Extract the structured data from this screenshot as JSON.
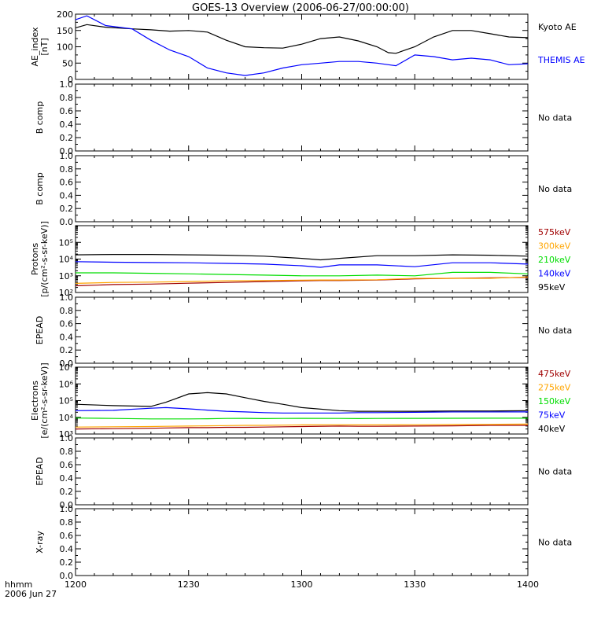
{
  "title": "GOES-13 Overview (2006-06-27/00:00:00)",
  "time_axis": {
    "ticks": [
      "1200",
      "1230",
      "1300",
      "1330",
      "1400"
    ],
    "unit_label": "hhmm",
    "date_label": "2006 Jun 27"
  },
  "colors": {
    "black": "#000000",
    "blue": "#0000ff",
    "green": "#00dd00",
    "orange": "#ffa500",
    "red": "#a00000",
    "frame": "#000000"
  },
  "chart_data": [
    {
      "type": "line",
      "panel": "ae",
      "ylabel": [
        "AE_index",
        "[nT]"
      ],
      "ylim": [
        0,
        200
      ],
      "yticks": [
        "0",
        "50",
        "100",
        "150",
        "200"
      ],
      "x": [
        0,
        3,
        8,
        15,
        20,
        25,
        30,
        35,
        40,
        45,
        50,
        55,
        60,
        65,
        70,
        75,
        80,
        83,
        85,
        90,
        95,
        100,
        105,
        110,
        115,
        120
      ],
      "series": [
        {
          "name": "Kyoto AE",
          "color": "black",
          "values": [
            158,
            168,
            160,
            155,
            152,
            148,
            150,
            145,
            120,
            100,
            97,
            96,
            108,
            125,
            130,
            118,
            100,
            82,
            80,
            100,
            130,
            150,
            150,
            140,
            130,
            128
          ]
        },
        {
          "name": "THEMIS AE",
          "color": "blue",
          "values": [
            183,
            195,
            165,
            155,
            120,
            90,
            70,
            35,
            20,
            12,
            20,
            35,
            45,
            50,
            55,
            55,
            50,
            45,
            42,
            75,
            70,
            60,
            65,
            60,
            45,
            48
          ]
        }
      ]
    },
    {
      "type": "line",
      "panel": "b1",
      "ylabel": [
        "B comp"
      ],
      "ylim": [
        0,
        1
      ],
      "yticks": [
        "0.0",
        "0.2",
        "0.4",
        "0.6",
        "0.8",
        "1.0"
      ],
      "status": "No data"
    },
    {
      "type": "line",
      "panel": "b2",
      "ylabel": [
        "B comp"
      ],
      "ylim": [
        0,
        1
      ],
      "yticks": [
        "0.0",
        "0.2",
        "0.4",
        "0.6",
        "0.8",
        "1.0"
      ],
      "status": "No data"
    },
    {
      "type": "line",
      "panel": "protons",
      "scale": "log",
      "ylabel": [
        "Protons",
        "[p/(cm²-s-sr-keV)]"
      ],
      "ylim": [
        100,
        1000000
      ],
      "yticks": [
        "10²",
        "10³",
        "10⁴",
        "10⁵"
      ],
      "x": [
        0,
        10,
        20,
        30,
        40,
        50,
        60,
        65,
        70,
        80,
        90,
        100,
        110,
        120
      ],
      "series": [
        {
          "name": "575keV",
          "color": "red",
          "values": [
            250,
            300,
            320,
            360,
            400,
            450,
            500,
            520,
            520,
            560,
            650,
            700,
            750,
            800
          ]
        },
        {
          "name": "300keV",
          "color": "orange",
          "values": [
            350,
            400,
            420,
            450,
            500,
            520,
            550,
            560,
            560,
            580,
            700,
            700,
            700,
            850
          ]
        },
        {
          "name": "210keV",
          "color": "green",
          "values": [
            1500,
            1500,
            1400,
            1300,
            1200,
            1100,
            1000,
            1000,
            1000,
            1100,
            1000,
            1600,
            1600,
            1300
          ]
        },
        {
          "name": "140keV",
          "color": "blue",
          "values": [
            7000,
            6500,
            6200,
            6000,
            5500,
            5000,
            4000,
            3200,
            4500,
            4500,
            3500,
            6000,
            6000,
            5000
          ]
        },
        {
          "name": "95keV",
          "color": "black",
          "values": [
            18000,
            19000,
            19000,
            18000,
            17000,
            15000,
            11000,
            9000,
            11000,
            16000,
            16000,
            18000,
            17000,
            15000
          ]
        }
      ]
    },
    {
      "type": "line",
      "panel": "epead1",
      "ylabel": [
        "EPEAD"
      ],
      "ylim": [
        0,
        1
      ],
      "yticks": [
        "0.0",
        "0.2",
        "0.4",
        "0.6",
        "0.8",
        "1.0"
      ],
      "status": "No data"
    },
    {
      "type": "line",
      "panel": "electrons",
      "scale": "log",
      "ylabel": [
        "Electrons",
        "[e/(cm²-s-sr-keV)]"
      ],
      "ylim": [
        1000,
        10000000
      ],
      "yticks": [
        "10³",
        "10⁴",
        "10⁵",
        "10⁶",
        "10⁷"
      ],
      "x": [
        0,
        10,
        20,
        24,
        30,
        35,
        40,
        45,
        50,
        55,
        60,
        70,
        75,
        80,
        90,
        100,
        110,
        120
      ],
      "series": [
        {
          "name": "475keV",
          "color": "red",
          "values": [
            2000,
            2100,
            2200,
            2300,
            2400,
            2400,
            2500,
            2500,
            2600,
            2700,
            2800,
            3000,
            2900,
            2900,
            3000,
            3100,
            3300,
            3300
          ]
        },
        {
          "name": "275keV",
          "color": "orange",
          "values": [
            2600,
            2700,
            2800,
            2900,
            3000,
            3100,
            3200,
            3300,
            3300,
            3400,
            3500,
            3600,
            3500,
            3500,
            3600,
            3700,
            3800,
            3900
          ]
        },
        {
          "name": "150keV",
          "color": "green",
          "values": [
            9000,
            8500,
            8000,
            8000,
            8000,
            8200,
            8500,
            8600,
            8400,
            8500,
            8600,
            8500,
            8400,
            8500,
            8600,
            8700,
            8800,
            8800
          ]
        },
        {
          "name": "75keV",
          "color": "blue",
          "values": [
            25000,
            26000,
            35000,
            38000,
            32000,
            27000,
            23000,
            21000,
            19000,
            18000,
            18000,
            18000,
            19000,
            19000,
            20000,
            21000,
            21000,
            21000
          ]
        },
        {
          "name": "40keV",
          "color": "black",
          "values": [
            60000,
            50000,
            45000,
            80000,
            250000,
            300000,
            250000,
            150000,
            90000,
            60000,
            38000,
            25000,
            23000,
            23000,
            23000,
            24000,
            24000,
            25000
          ]
        }
      ]
    },
    {
      "type": "line",
      "panel": "epead2",
      "ylabel": [
        "EPEAD"
      ],
      "ylim": [
        0,
        1
      ],
      "yticks": [
        "0.0",
        "0.2",
        "0.4",
        "0.6",
        "0.8",
        "1.0"
      ],
      "status": "No data"
    },
    {
      "type": "line",
      "panel": "xray",
      "ylabel": [
        "X-ray"
      ],
      "ylim": [
        0,
        1
      ],
      "yticks": [
        "0.0",
        "0.2",
        "0.4",
        "0.6",
        "0.8",
        "1.0"
      ],
      "status": "No data"
    }
  ]
}
